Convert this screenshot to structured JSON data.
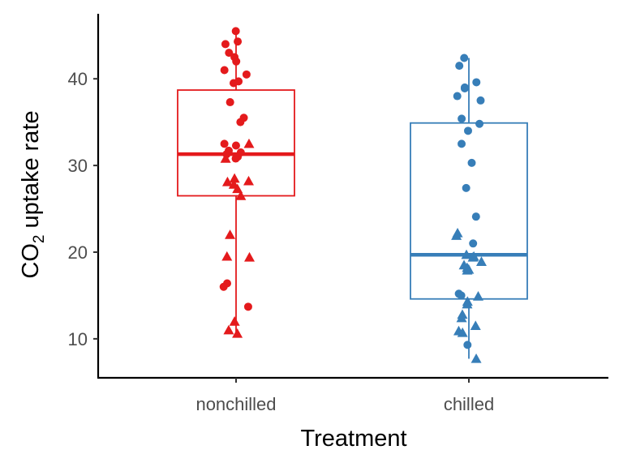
{
  "chart_data": {
    "type": "box",
    "xlabel": "Treatment",
    "ylabel": {
      "main": "CO",
      "subscript": "2",
      "rest": " uptake rate"
    },
    "categories": [
      "nonchilled",
      "chilled"
    ],
    "y_ticks": [
      10,
      20,
      30,
      40
    ],
    "ylim": [
      5.5,
      47.5
    ],
    "grid": false,
    "legend": "none",
    "colors": {
      "nonchilled": "#e41a1c",
      "chilled": "#377eb8"
    },
    "boxes": [
      {
        "category": "nonchilled",
        "whisker_low": 10.6,
        "q1": 26.5,
        "median": 31.3,
        "q3": 38.7,
        "whisker_high": 45.5
      },
      {
        "category": "chilled",
        "whisker_low": 7.7,
        "q1": 14.6,
        "median": 19.7,
        "q3": 34.9,
        "whisker_high": 42.4
      }
    ],
    "points": [
      {
        "category": "nonchilled",
        "shape": "circle",
        "values": [
          45.5,
          44.3,
          44.0,
          43.0,
          42.5,
          42.0,
          41.0,
          40.5,
          39.7,
          39.5,
          37.3,
          35.5,
          35.0,
          32.5,
          32.3,
          31.7,
          31.5,
          31.3,
          31.0,
          30.8,
          16.4,
          16.0,
          13.7
        ]
      },
      {
        "category": "nonchilled",
        "shape": "triangle",
        "values": [
          32.5,
          30.8,
          28.5,
          28.2,
          28.1,
          27.8,
          27.3,
          26.5,
          22.0,
          19.5,
          19.4,
          12.0,
          11.0,
          10.6
        ]
      },
      {
        "category": "chilled",
        "shape": "circle",
        "values": [
          42.4,
          41.5,
          39.6,
          39.0,
          38.9,
          38.0,
          37.5,
          35.4,
          34.8,
          34.0,
          32.5,
          30.3,
          27.4,
          24.1,
          21.0,
          15.2,
          15.0,
          9.3
        ]
      },
      {
        "category": "chilled",
        "shape": "triangle",
        "values": [
          22.2,
          21.9,
          19.7,
          19.5,
          19.4,
          18.9,
          18.5,
          18.2,
          18.0,
          17.9,
          14.9,
          14.3,
          14.0,
          12.8,
          12.4,
          11.5,
          10.9,
          10.7,
          7.7
        ]
      }
    ]
  }
}
